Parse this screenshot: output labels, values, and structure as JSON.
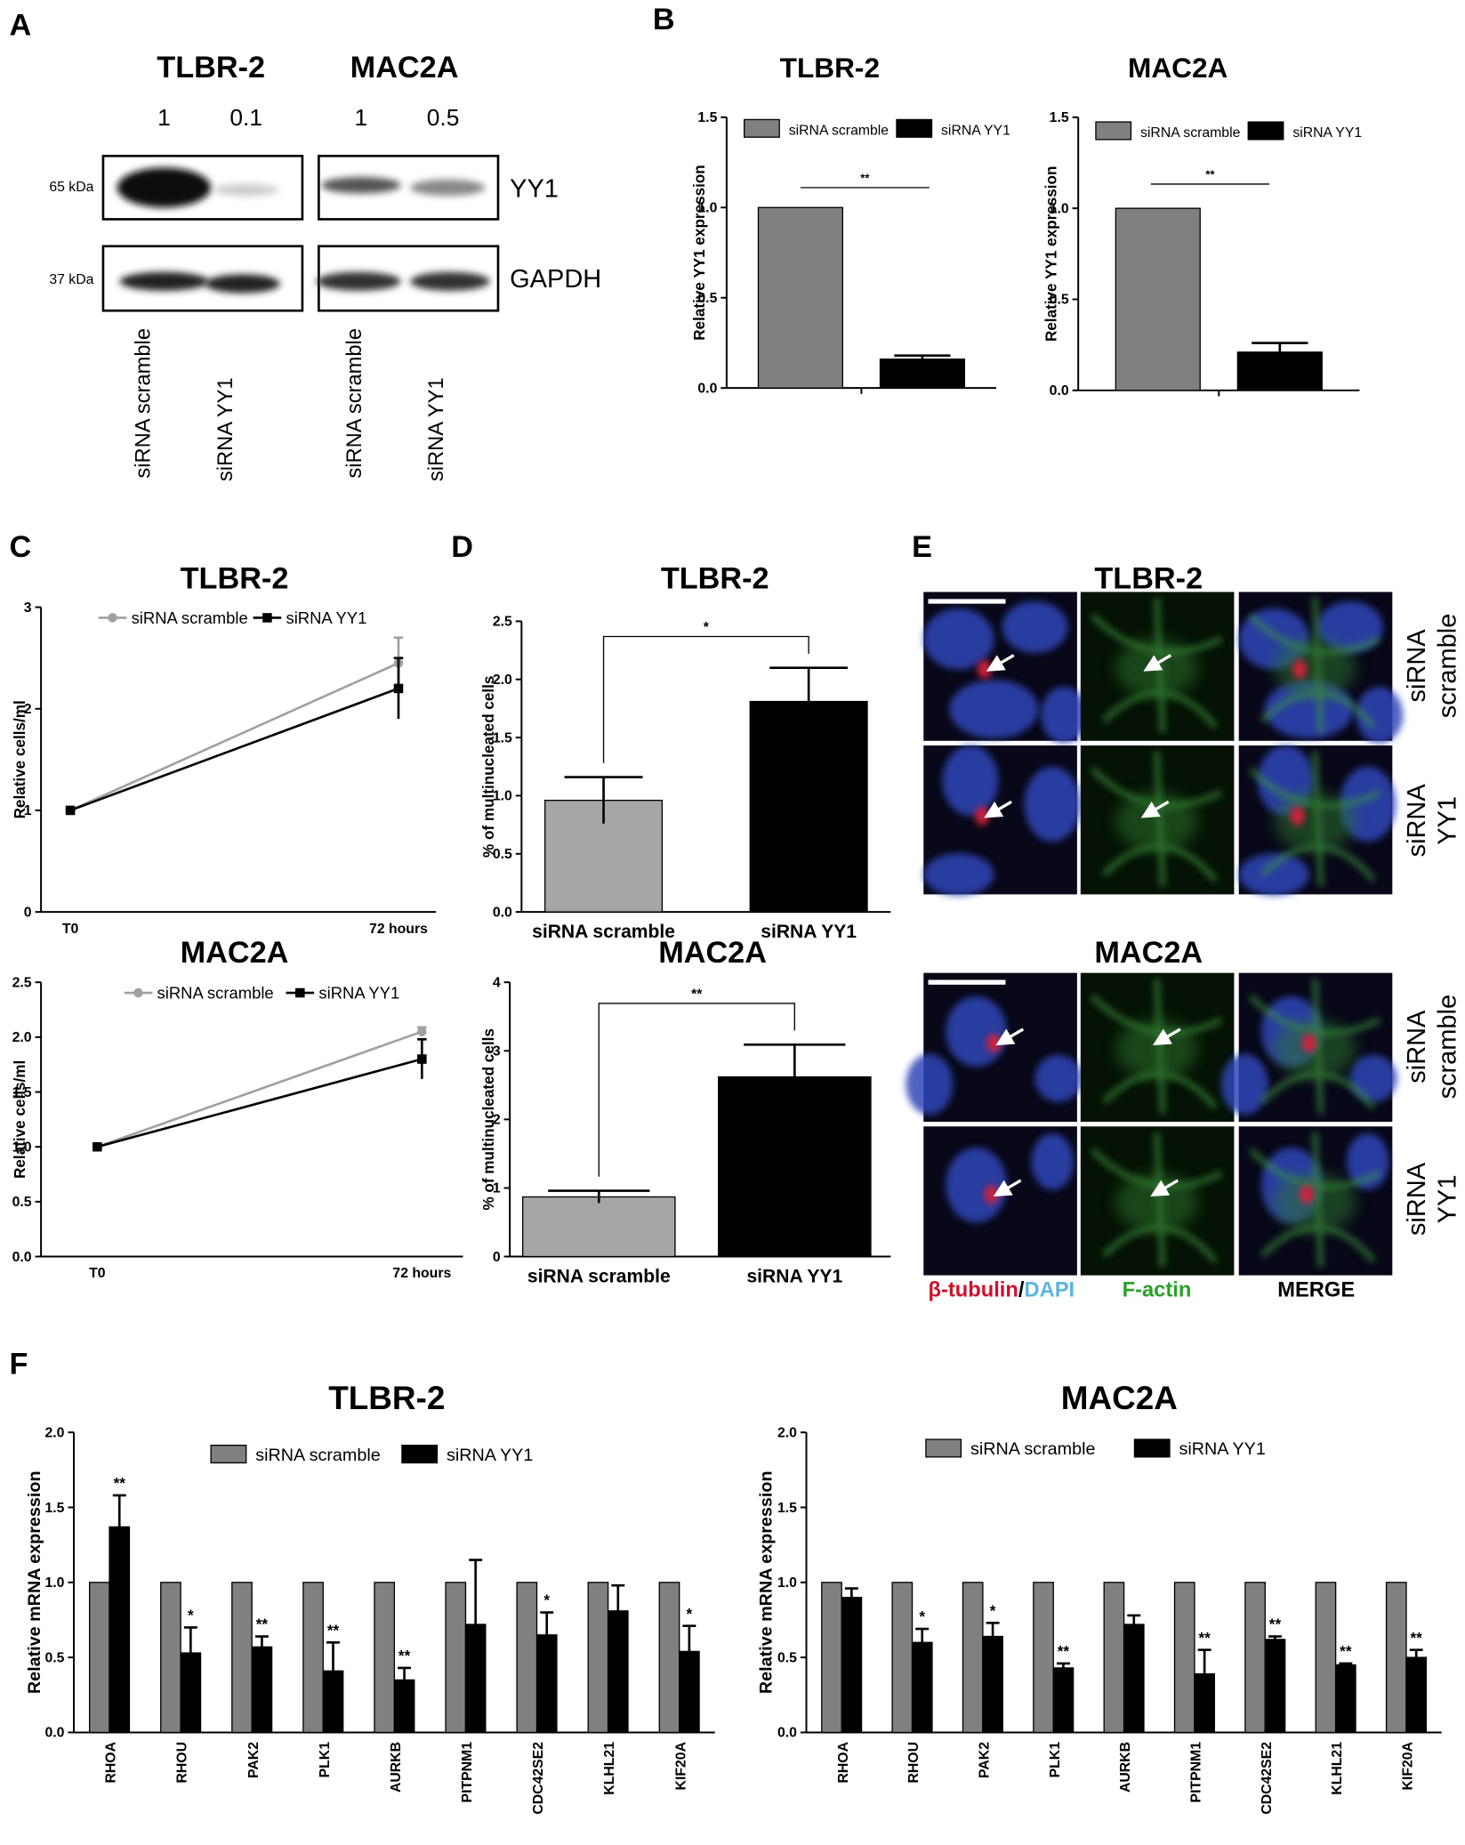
{
  "panel_labels": [
    "A",
    "B",
    "C",
    "D",
    "E",
    "F"
  ],
  "blot": {
    "cell_lines": [
      "TLBR-2",
      "MAC2A"
    ],
    "ratios": [
      1,
      0.1,
      1,
      0.5
    ],
    "markers": [
      "65 kDa",
      "37 kDa"
    ],
    "proteins": [
      "YY1",
      "GAPDH"
    ],
    "lanes": [
      "siRNA scramble",
      "siRNA YY1",
      "siRNA scramble",
      "siRNA YY1"
    ]
  },
  "microscopy": {
    "cell_lines": [
      "TLBR-2",
      "MAC2A"
    ],
    "rows": [
      [
        "siRNA",
        "scramble"
      ],
      [
        "siRNA",
        "YY1"
      ]
    ],
    "channels": {
      "tubulin": "β-tubulin",
      "separator": "/",
      "dapi": "DAPI",
      "actin": "F-actin",
      "merge": "MERGE"
    }
  },
  "chart_data": [
    {
      "type": "bar",
      "title": "TLBR-2",
      "y_label": "Relative YY1 expression",
      "categories": [
        null
      ],
      "series": [
        {
          "name": "siRNA scramble",
          "color": "#808080",
          "values": [
            1.0
          ]
        },
        {
          "name": "siRNA YY1",
          "color": "#000000",
          "values": [
            0.16
          ],
          "errors": [
            0.02
          ]
        }
      ],
      "ylim": [
        0,
        1.5
      ],
      "yticks": [
        {
          "value": 0,
          "label": "0.0"
        },
        {
          "value": 0.5,
          "label": "0.5"
        },
        {
          "value": 1,
          "label": "1.0"
        },
        {
          "value": 1.5,
          "label": "1.5"
        }
      ],
      "significance": "**"
    },
    {
      "type": "bar",
      "title": "MAC2A",
      "y_label": "Relative YY1 expression",
      "categories": [
        null
      ],
      "series": [
        {
          "name": "siRNA scramble",
          "color": "#808080",
          "values": [
            1.0
          ]
        },
        {
          "name": "siRNA YY1",
          "color": "#000000",
          "values": [
            0.21
          ],
          "errors": [
            0.05
          ]
        }
      ],
      "ylim": [
        0,
        1.5
      ],
      "yticks": [
        {
          "value": 0,
          "label": "0.0"
        },
        {
          "value": 0.5,
          "label": "0.5"
        },
        {
          "value": 1,
          "label": "1.0"
        },
        {
          "value": 1.5,
          "label": "1.5"
        }
      ],
      "significance": "**"
    },
    {
      "type": "line",
      "title": "TLBR-2",
      "y_label": "Relative cells/ml",
      "categories": [
        "T0",
        "72 hours"
      ],
      "series": [
        {
          "name": "siRNA scramble",
          "color": "#a0a0a0",
          "marker": "circle",
          "values": [
            1,
            2.45
          ],
          "errors": [
            0,
            0.25
          ]
        },
        {
          "name": "siRNA YY1",
          "color": "#000000",
          "marker": "square",
          "values": [
            1,
            2.2
          ],
          "errors": [
            0,
            0.3
          ]
        }
      ],
      "ylim": [
        0,
        3
      ],
      "yticks": [
        0,
        1,
        2,
        3
      ]
    },
    {
      "type": "line",
      "title": "MAC2A",
      "y_label": "Relative cells/ml",
      "categories": [
        "T0",
        "72 hours"
      ],
      "series": [
        {
          "name": "siRNA scramble",
          "color": "#a0a0a0",
          "marker": "circle",
          "values": [
            1,
            2.05
          ],
          "errors": [
            0,
            0.04
          ]
        },
        {
          "name": "siRNA YY1",
          "color": "#000000",
          "marker": "square",
          "values": [
            1,
            1.8
          ],
          "errors": [
            0,
            0.18
          ]
        }
      ],
      "ylim": [
        0,
        2.5
      ],
      "yticks": [
        {
          "value": 0,
          "label": "0.0"
        },
        {
          "value": 0.5,
          "label": "0.5"
        },
        {
          "value": 1,
          "label": "1.0"
        },
        {
          "value": 1.5,
          "label": "1.5"
        },
        {
          "value": 2,
          "label": "2.0"
        },
        {
          "value": 2.5,
          "label": "2.5"
        }
      ]
    },
    {
      "type": "bar",
      "title": "TLBR-2",
      "y_label": "% of multinucleated cells",
      "categories": [
        "siRNA scramble",
        "siRNA YY1"
      ],
      "values": [
        0.96,
        1.81
      ],
      "errors": [
        0.2,
        0.29
      ],
      "colors": [
        "#a6a6a6",
        "#000000"
      ],
      "ylim": [
        0,
        2.5
      ],
      "yticks": [
        {
          "value": 0,
          "label": "0.0"
        },
        {
          "value": 0.5,
          "label": "0.5"
        },
        {
          "value": 1,
          "label": "1.0"
        },
        {
          "value": 1.5,
          "label": "1.5"
        },
        {
          "value": 2,
          "label": "2.0"
        },
        {
          "value": 2.5,
          "label": "2.5"
        }
      ],
      "significance": "*"
    },
    {
      "type": "bar",
      "title": "MAC2A",
      "y_label": "% of multinucleated cells",
      "categories": [
        "siRNA scramble",
        "siRNA YY1"
      ],
      "values": [
        0.87,
        2.62
      ],
      "errors": [
        0.09,
        0.47
      ],
      "colors": [
        "#a6a6a6",
        "#000000"
      ],
      "ylim": [
        0,
        4
      ],
      "yticks": [
        0,
        1,
        2,
        3,
        4
      ],
      "significance": "**"
    },
    {
      "type": "bar",
      "title": "TLBR-2",
      "y_label": "Relative mRNA expression",
      "categories": [
        "RHOA",
        "RHOU",
        "PAK2",
        "PLK1",
        "AURKB",
        "PITPNM1",
        "CDC42SE2",
        "KLHL21",
        "KIF20A"
      ],
      "series": [
        {
          "name": "siRNA scramble",
          "color": "#808080",
          "values": [
            1,
            1,
            1,
            1,
            1,
            1,
            1,
            1,
            1
          ]
        },
        {
          "name": "siRNA YY1",
          "color": "#000000",
          "values": [
            1.37,
            0.53,
            0.57,
            0.41,
            0.35,
            0.72,
            0.65,
            0.81,
            0.54
          ],
          "errors": [
            0.21,
            0.17,
            0.07,
            0.19,
            0.08,
            0.43,
            0.15,
            0.17,
            0.17
          ],
          "significance": [
            "**",
            "*",
            "**",
            "**",
            "**",
            null,
            "*",
            null,
            "*"
          ]
        }
      ],
      "ylim": [
        0,
        2
      ],
      "yticks": [
        {
          "value": 0,
          "label": "0.0"
        },
        {
          "value": 0.5,
          "label": "0.5"
        },
        {
          "value": 1,
          "label": "1.0"
        },
        {
          "value": 1.5,
          "label": "1.5"
        },
        {
          "value": 2,
          "label": "2.0"
        }
      ]
    },
    {
      "type": "bar",
      "title": "MAC2A",
      "y_label": "Relative mRNA expression",
      "categories": [
        "RHOA",
        "RHOU",
        "PAK2",
        "PLK1",
        "AURKB",
        "PITPNM1",
        "CDC42SE2",
        "KLHL21",
        "KIF20A"
      ],
      "series": [
        {
          "name": "siRNA scramble",
          "color": "#808080",
          "values": [
            1,
            1,
            1,
            1,
            1,
            1,
            1,
            1,
            1
          ]
        },
        {
          "name": "siRNA YY1",
          "color": "#000000",
          "values": [
            0.9,
            0.6,
            0.64,
            0.43,
            0.72,
            0.39,
            0.62,
            0.45,
            0.5
          ],
          "errors": [
            0.06,
            0.09,
            0.09,
            0.03,
            0.06,
            0.16,
            0.02,
            0.01,
            0.05
          ],
          "significance": [
            null,
            "*",
            "*",
            "**",
            null,
            "**",
            "**",
            "**",
            "**"
          ]
        }
      ],
      "ylim": [
        0,
        2
      ],
      "yticks": [
        {
          "value": 0,
          "label": "0.0"
        },
        {
          "value": 0.5,
          "label": "0.5"
        },
        {
          "value": 1,
          "label": "1.0"
        },
        {
          "value": 1.5,
          "label": "1.5"
        },
        {
          "value": 2,
          "label": "2.0"
        }
      ]
    }
  ]
}
